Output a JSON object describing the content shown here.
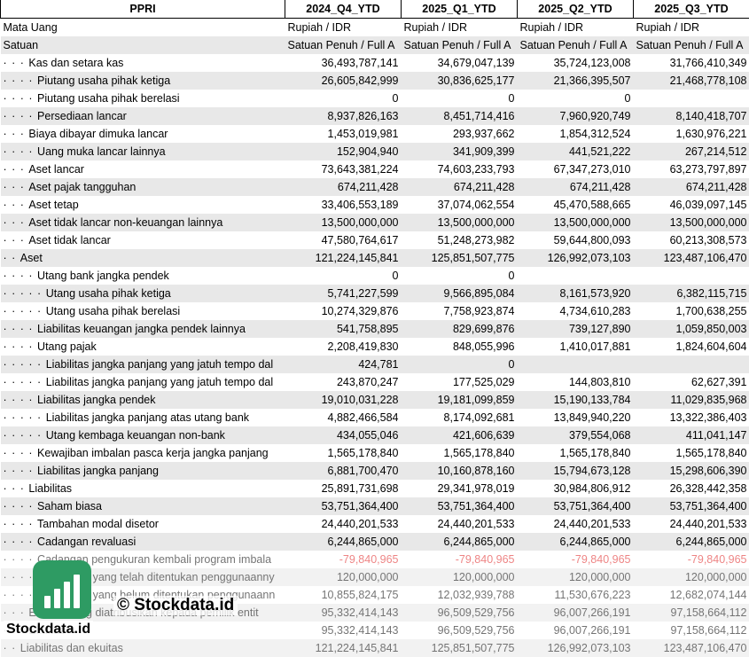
{
  "header": {
    "ticker": "PPRI",
    "periods": [
      "2024_Q4_YTD",
      "2025_Q1_YTD",
      "2025_Q2_YTD",
      "2025_Q3_YTD"
    ]
  },
  "currency_row": {
    "label": "Mata Uang",
    "values": [
      "Rupiah / IDR",
      "Rupiah / IDR",
      "Rupiah / IDR",
      "Rupiah / IDR"
    ]
  },
  "unit_row": {
    "label": "Satuan",
    "values": [
      "Satuan Penuh / Full A",
      "Satuan Penuh / Full A",
      "Satuan Penuh / Full A",
      "Satuan Penuh / Full A"
    ]
  },
  "rows": [
    {
      "dots": "· · · ",
      "label": "Kas dan setara kas",
      "values": [
        "36,493,787,141",
        "34,679,047,139",
        "35,724,123,008",
        "31,766,410,349"
      ]
    },
    {
      "dots": "· · · · ",
      "label": "Piutang usaha pihak ketiga",
      "values": [
        "26,605,842,999",
        "30,836,625,177",
        "21,366,395,507",
        "21,468,778,108"
      ]
    },
    {
      "dots": "· · · · ",
      "label": "Piutang usaha pihak berelasi",
      "values": [
        "0",
        "0",
        "0",
        ""
      ]
    },
    {
      "dots": "· · · · ",
      "label": "Persediaan lancar",
      "values": [
        "8,937,826,163",
        "8,451,714,416",
        "7,960,920,749",
        "8,140,418,707"
      ]
    },
    {
      "dots": "· · · ",
      "label": "Biaya dibayar dimuka lancar",
      "values": [
        "1,453,019,981",
        "293,937,662",
        "1,854,312,524",
        "1,630,976,221"
      ]
    },
    {
      "dots": "· · · · ",
      "label": "Uang muka lancar lainnya",
      "values": [
        "152,904,940",
        "341,909,399",
        "441,521,222",
        "267,214,512"
      ]
    },
    {
      "dots": "· · · ",
      "label": "Aset lancar",
      "values": [
        "73,643,381,224",
        "74,603,233,793",
        "67,347,273,010",
        "63,273,797,897"
      ]
    },
    {
      "dots": "· · · ",
      "label": "Aset pajak tangguhan",
      "values": [
        "674,211,428",
        "674,211,428",
        "674,211,428",
        "674,211,428"
      ]
    },
    {
      "dots": "· · · ",
      "label": "Aset tetap",
      "values": [
        "33,406,553,189",
        "37,074,062,554",
        "45,470,588,665",
        "46,039,097,145"
      ]
    },
    {
      "dots": "· · · ",
      "label": "Aset tidak lancar non-keuangan lainnya",
      "values": [
        "13,500,000,000",
        "13,500,000,000",
        "13,500,000,000",
        "13,500,000,000"
      ]
    },
    {
      "dots": "· · · ",
      "label": "Aset tidak lancar",
      "values": [
        "47,580,764,617",
        "51,248,273,982",
        "59,644,800,093",
        "60,213,308,573"
      ]
    },
    {
      "dots": "· · ",
      "label": "Aset",
      "values": [
        "121,224,145,841",
        "125,851,507,775",
        "126,992,073,103",
        "123,487,106,470"
      ]
    },
    {
      "dots": "· · · · ",
      "label": "Utang bank jangka pendek",
      "values": [
        "0",
        "0",
        "",
        ""
      ]
    },
    {
      "dots": "· · · · · ",
      "label": "Utang usaha pihak ketiga",
      "values": [
        "5,741,227,599",
        "9,566,895,084",
        "8,161,573,920",
        "6,382,115,715"
      ]
    },
    {
      "dots": "· · · · · ",
      "label": "Utang usaha pihak berelasi",
      "values": [
        "10,274,329,876",
        "7,758,923,874",
        "4,734,610,283",
        "1,700,638,255"
      ]
    },
    {
      "dots": "· · · · ",
      "label": "Liabilitas keuangan jangka pendek lainnya",
      "values": [
        "541,758,895",
        "829,699,876",
        "739,127,890",
        "1,059,850,003"
      ]
    },
    {
      "dots": "· · · · ",
      "label": "Utang pajak",
      "values": [
        "2,208,419,830",
        "848,055,996",
        "1,410,017,881",
        "1,824,604,604"
      ]
    },
    {
      "dots": "· · · · · ",
      "label": "Liabilitas jangka panjang yang jatuh tempo dal",
      "values": [
        "424,781",
        "0",
        "",
        ""
      ]
    },
    {
      "dots": "· · · · · ",
      "label": "Liabilitas jangka panjang yang jatuh tempo dal",
      "values": [
        "243,870,247",
        "177,525,029",
        "144,803,810",
        "62,627,391"
      ]
    },
    {
      "dots": "· · · · ",
      "label": "Liabilitas jangka pendek",
      "values": [
        "19,010,031,228",
        "19,181,099,859",
        "15,190,133,784",
        "11,029,835,968"
      ]
    },
    {
      "dots": "· · · · · ",
      "label": "Liabilitas jangka panjang atas utang bank",
      "values": [
        "4,882,466,584",
        "8,174,092,681",
        "13,849,940,220",
        "13,322,386,403"
      ]
    },
    {
      "dots": "· · · · · ",
      "label": "Utang kembaga keuangan non-bank",
      "values": [
        "434,055,046",
        "421,606,639",
        "379,554,068",
        "411,041,147"
      ]
    },
    {
      "dots": "· · · · ",
      "label": "Kewajiban imbalan pasca kerja jangka panjang",
      "values": [
        "1,565,178,840",
        "1,565,178,840",
        "1,565,178,840",
        "1,565,178,840"
      ]
    },
    {
      "dots": "· · · · ",
      "label": "Liabilitas jangka panjang",
      "values": [
        "6,881,700,470",
        "10,160,878,160",
        "15,794,673,128",
        "15,298,606,390"
      ]
    },
    {
      "dots": "· · · ",
      "label": "Liabilitas",
      "values": [
        "25,891,731,698",
        "29,341,978,019",
        "30,984,806,912",
        "26,328,442,358"
      ]
    },
    {
      "dots": "· · · · ",
      "label": "Saham biasa",
      "values": [
        "53,751,364,400",
        "53,751,364,400",
        "53,751,364,400",
        "53,751,364,400"
      ]
    },
    {
      "dots": "· · · · ",
      "label": "Tambahan modal disetor",
      "values": [
        "24,440,201,533",
        "24,440,201,533",
        "24,440,201,533",
        "24,440,201,533"
      ]
    },
    {
      "dots": "· · · · ",
      "label": "Cadangan revaluasi",
      "values": [
        "6,244,865,000",
        "6,244,865,000",
        "6,244,865,000",
        "6,244,865,000"
      ]
    },
    {
      "dots": "· · · · ",
      "label": "Cadangan pengukuran kembali program imbala",
      "values": [
        "-79,840,965",
        "-79,840,965",
        "-79,840,965",
        "-79,840,965"
      ],
      "negative": true,
      "faded": true
    },
    {
      "dots": "· · · · ",
      "label": "Saldo laba yang telah ditentukan penggunaanny",
      "values": [
        "120,000,000",
        "120,000,000",
        "120,000,000",
        "120,000,000"
      ],
      "faded": true
    },
    {
      "dots": "· · · · ",
      "label": "Saldo laba yang belum ditentukan penggunaann",
      "values": [
        "10,855,824,175",
        "12,032,939,788",
        "11,530,676,223",
        "12,682,074,144"
      ],
      "faded": true
    },
    {
      "dots": "· · · ",
      "label": "Ekuitas yang diatribusikan kepada pemilik entit",
      "values": [
        "95,332,414,143",
        "96,509,529,756",
        "96,007,266,191",
        "97,158,664,112"
      ],
      "faded": true
    },
    {
      "dots": "· · · ",
      "label": "Ekuitas",
      "values": [
        "95,332,414,143",
        "96,509,529,756",
        "96,007,266,191",
        "97,158,664,112"
      ],
      "faded": true
    },
    {
      "dots": "· · ",
      "label": "Liabilitas dan ekuitas",
      "values": [
        "121,224,145,841",
        "125,851,507,775",
        "126,992,073,103",
        "123,487,106,470"
      ],
      "faded": true
    }
  ],
  "watermark": {
    "copyright": "© Stockdata.id",
    "brand": "Stockdata.id",
    "logo_color": "#2e9b63",
    "logo_icon": "bar-chart-icon"
  }
}
